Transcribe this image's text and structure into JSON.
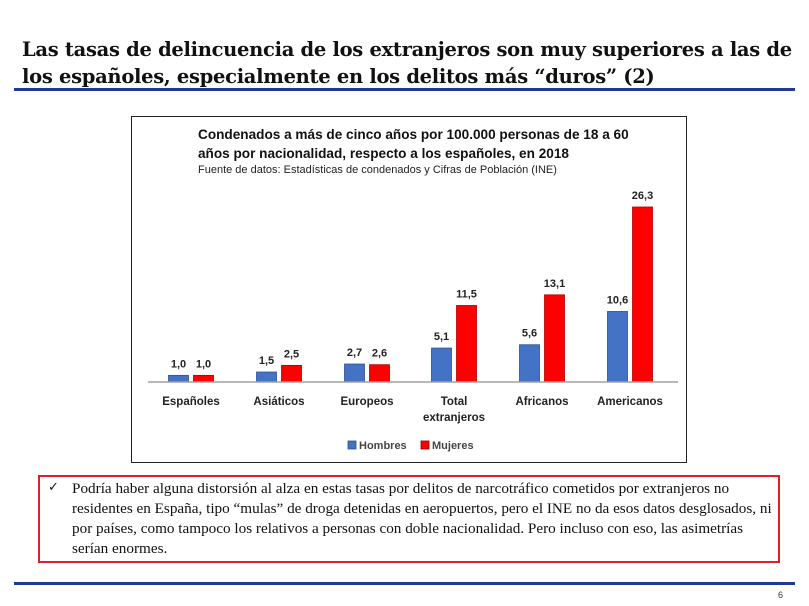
{
  "slide": {
    "title": "Las tasas de delincuencia de los extranjeros son muy superiores a las de los españoles, especialmente en los delitos más “duros” (2)",
    "page_number": "6",
    "note": {
      "icon": "checkmark-icon",
      "check_glyph": "✓",
      "text": "Podría haber alguna distorsión al alza en estas tasas por delitos de narcotráfico cometidos por extranjeros no residentes en España, tipo “mulas” de droga detenidas en aeropuertos, pero el INE no da esos datos desglosados, ni por países, como tampoco los relativos a personas con doble nacionalidad. Pero incluso con eso, las asimetrías serían enormes."
    }
  },
  "colors": {
    "rule": "#1f3a93",
    "hombres": "#4472c4",
    "mujeres": "#ff0000",
    "note_border": "#e02020"
  },
  "chart_data": {
    "type": "bar",
    "title_line1": "Condenados a más de cinco años por 100.000 personas de 18 a 60",
    "title_line2": "años por nacionalidad, respecto a los españoles, en 2018",
    "subtitle": "Fuente de datos: Estadísticas de condenados y Cifras de Población (INE)",
    "categories": [
      [
        "Españoles"
      ],
      [
        "Asiáticos"
      ],
      [
        "Europeos"
      ],
      [
        "Total",
        "extranjeros"
      ],
      [
        "Africanos"
      ],
      [
        "Americanos"
      ]
    ],
    "series": [
      {
        "name": "Hombres",
        "values": [
          1.0,
          1.5,
          2.7,
          5.1,
          5.6,
          10.6
        ],
        "labels": [
          "1,0",
          "1,5",
          "2,7",
          "5,1",
          "5,6",
          "10,6"
        ]
      },
      {
        "name": "Mujeres",
        "values": [
          1.0,
          2.5,
          2.6,
          11.5,
          13.1,
          26.3
        ],
        "labels": [
          "1,0",
          "2,5",
          "2,6",
          "11,5",
          "13,1",
          "26,3"
        ]
      }
    ],
    "xlabel": "",
    "ylabel": "",
    "ylim": [
      0,
      26.3
    ],
    "grid": false,
    "legend": "bottom"
  }
}
